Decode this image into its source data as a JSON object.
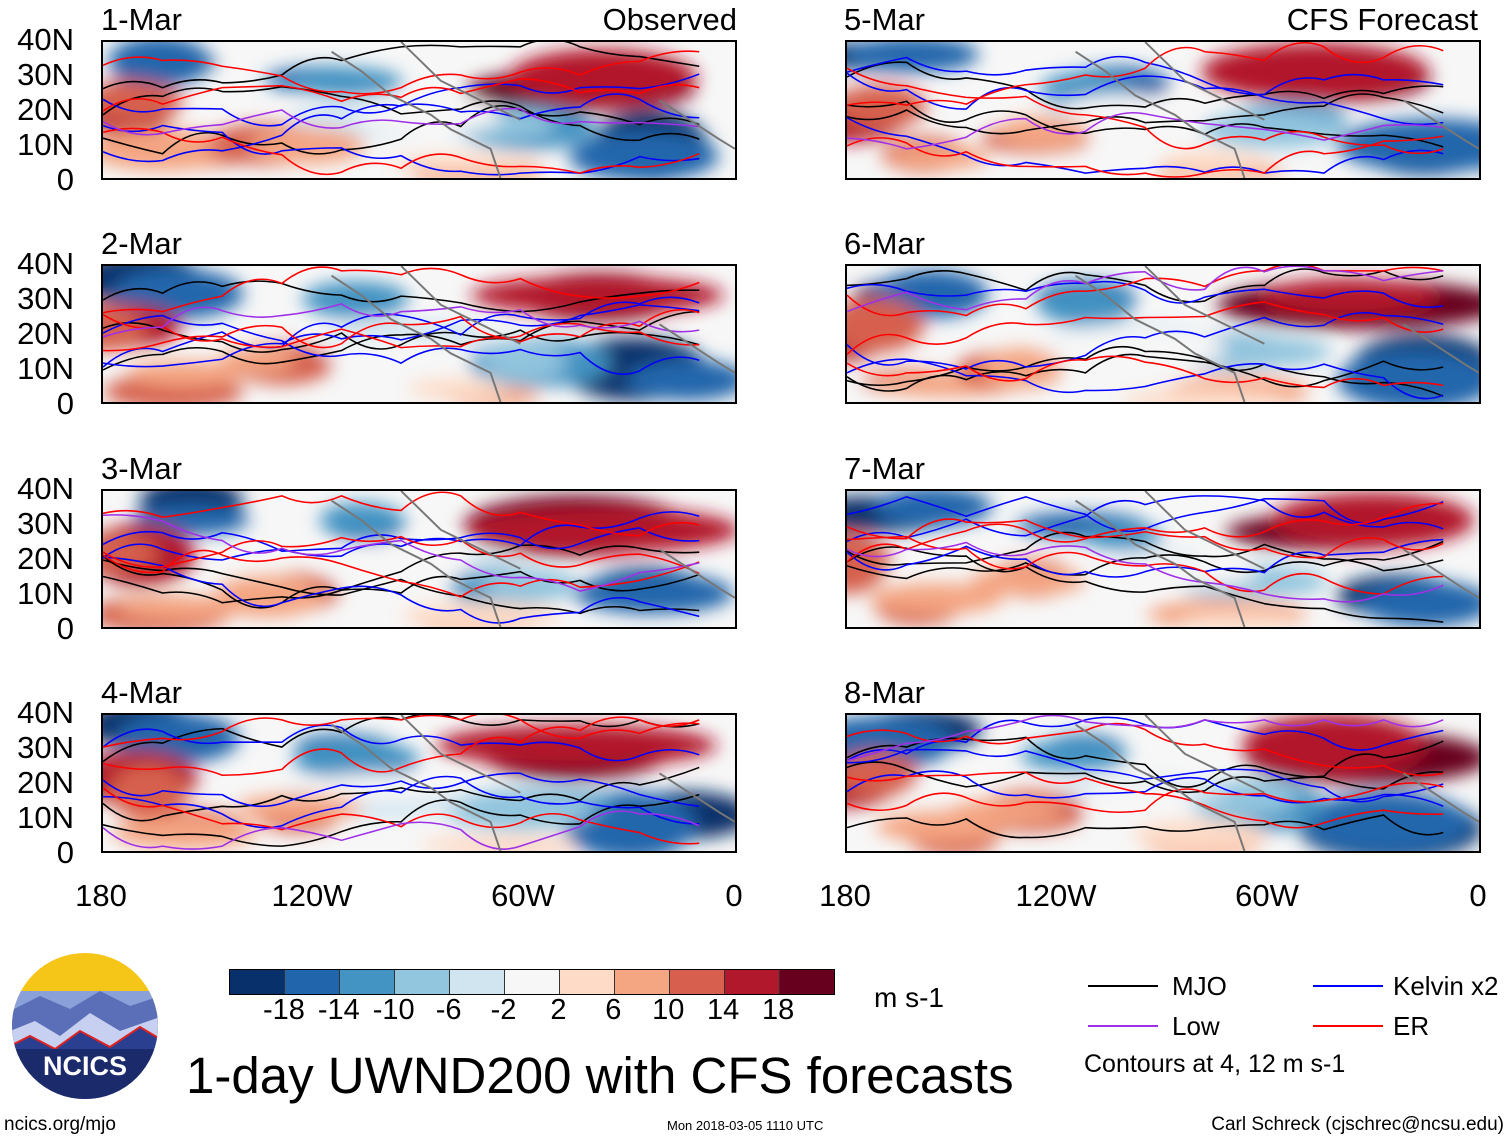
{
  "title": "1-day UWND200 with CFS forecasts",
  "left_header": "Observed",
  "right_header": "CFS Forecast",
  "panels_left": [
    "1-Mar",
    "2-Mar",
    "3-Mar",
    "4-Mar"
  ],
  "panels_right": [
    "5-Mar",
    "6-Mar",
    "7-Mar",
    "8-Mar"
  ],
  "y_ticks": [
    "40N",
    "30N",
    "20N",
    "10N",
    "0"
  ],
  "x_ticks": [
    "180",
    "120W",
    "60W",
    "0"
  ],
  "colorbar": {
    "colors": [
      "#08306b",
      "#2166ac",
      "#4393c3",
      "#92c5de",
      "#d1e5f0",
      "#f7f7f7",
      "#fddbc7",
      "#f4a582",
      "#d6604d",
      "#b2182b",
      "#67001f"
    ],
    "labels": [
      "-18",
      "-14",
      "-10",
      "-6",
      "-2",
      "2",
      "6",
      "10",
      "14",
      "18"
    ],
    "units": "m s-1"
  },
  "legend": {
    "items": [
      {
        "label": "MJO",
        "color": "#000000"
      },
      {
        "label": "Low",
        "color": "#a030e8"
      },
      {
        "label": "Kelvin x2",
        "color": "#0000ff"
      },
      {
        "label": "ER",
        "color": "#ff0000"
      }
    ],
    "note": "Contours at 4, 12 m s-1"
  },
  "logo_text": "NCICS",
  "footer": {
    "left": "ncics.org/mjo",
    "center": "Mon 2018-03-05 1110 UTC",
    "right": "Carl Schreck (cjschrec@ncsu.edu)"
  }
}
